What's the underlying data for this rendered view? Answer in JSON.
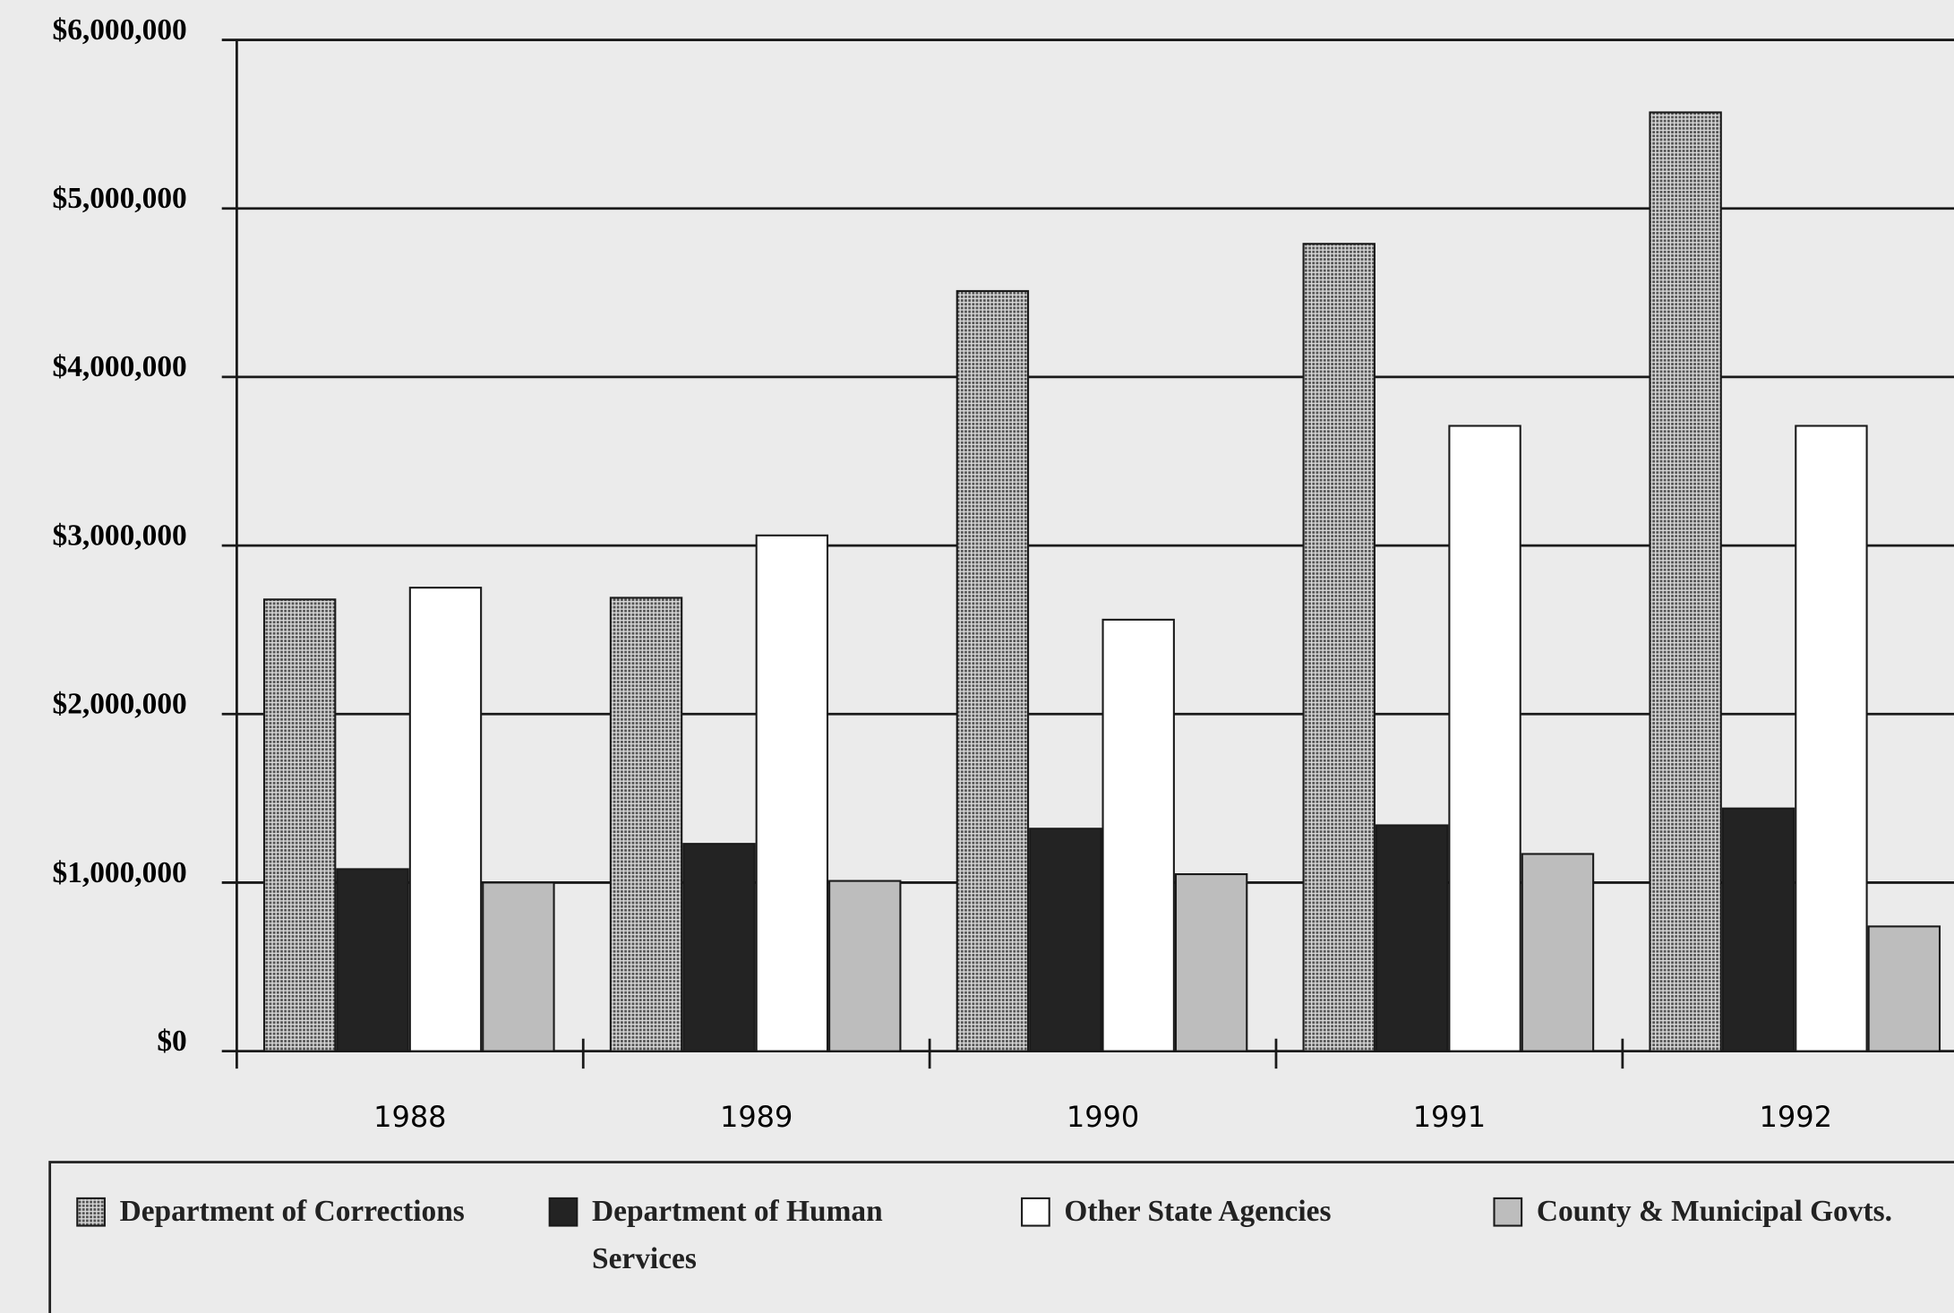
{
  "chart_data": {
    "type": "bar",
    "categories": [
      "1988",
      "1989",
      "1990",
      "1991",
      "1992"
    ],
    "series": [
      {
        "name": "Department of Corrections",
        "color": "#8e8e8e",
        "values": [
          2680000,
          2690000,
          4510000,
          4790000,
          5570000
        ]
      },
      {
        "name": "Department of Human Services",
        "color": "#232323",
        "values": [
          1080000,
          1230000,
          1320000,
          1340000,
          1440000
        ]
      },
      {
        "name": "Other State Agencies",
        "color": "#ffffff",
        "values": [
          2750000,
          3060000,
          2560000,
          3710000,
          3710000
        ]
      },
      {
        "name": "County & Municipal Govts.",
        "color": "#bdbdbd",
        "values": [
          1000000,
          1010000,
          1050000,
          1170000,
          740000
        ]
      }
    ],
    "ylim": [
      0,
      6000000
    ],
    "yticks": [
      {
        "value": 0,
        "label": "$0"
      },
      {
        "value": 1000000,
        "label": "$1,000,000"
      },
      {
        "value": 2000000,
        "label": "$2,000,000"
      },
      {
        "value": 3000000,
        "label": "$3,000,000"
      },
      {
        "value": 4000000,
        "label": "$4,000,000"
      },
      {
        "value": 5000000,
        "label": "$5,000,000"
      },
      {
        "value": 6000000,
        "label": "$6,000,000"
      }
    ],
    "grid": true,
    "legend": "bottom"
  }
}
